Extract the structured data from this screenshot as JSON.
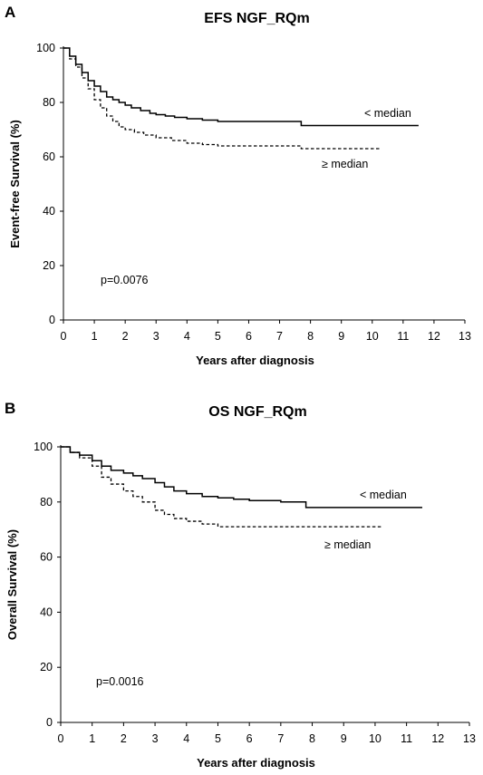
{
  "chart_data": [
    {
      "panel": "A",
      "type": "line",
      "title": "EFS NGF_RQm",
      "xlabel": "Years after diagnosis",
      "ylabel": "Event-free Survival (%)",
      "xlim": [
        0,
        13
      ],
      "ylim": [
        0,
        100
      ],
      "xticks": [
        0,
        1,
        2,
        3,
        4,
        5,
        6,
        7,
        8,
        9,
        10,
        11,
        12,
        13
      ],
      "yticks": [
        0,
        20,
        40,
        60,
        80,
        100
      ],
      "pvalue": "p=0.0076",
      "series": [
        {
          "name": "< median",
          "style": "solid",
          "x": [
            0,
            0.2,
            0.4,
            0.6,
            0.8,
            1.0,
            1.2,
            1.4,
            1.6,
            1.8,
            2.0,
            2.2,
            2.5,
            2.8,
            3.0,
            3.3,
            3.6,
            4.0,
            4.5,
            5.0,
            6.0,
            7.0,
            7.7,
            7.7,
            9.0,
            10.0,
            11.5
          ],
          "y": [
            100,
            97,
            94,
            91,
            88,
            86,
            84,
            82,
            81,
            80,
            79,
            78,
            77,
            76,
            75.5,
            75,
            74.5,
            74,
            73.5,
            73,
            73,
            73,
            72.5,
            71.5,
            71.5,
            71.5,
            71.5
          ]
        },
        {
          "name": "≥ median",
          "style": "dashed",
          "x": [
            0,
            0.2,
            0.4,
            0.6,
            0.8,
            1.0,
            1.2,
            1.4,
            1.6,
            1.8,
            2.0,
            2.3,
            2.6,
            3.0,
            3.5,
            4.0,
            4.5,
            5.0,
            6.0,
            7.0,
            7.6,
            7.7,
            9.0,
            10.3
          ],
          "y": [
            100,
            96,
            93,
            89,
            85,
            81,
            78,
            75,
            73,
            71,
            70,
            69,
            68,
            67,
            66,
            65,
            64.5,
            64,
            64,
            64,
            64,
            63,
            63,
            63
          ]
        }
      ]
    },
    {
      "panel": "B",
      "type": "line",
      "title": "OS NGF_RQm",
      "xlabel": "Years after diagnosis",
      "ylabel": "Overall Survival  (%)",
      "xlim": [
        0,
        13
      ],
      "ylim": [
        0,
        100
      ],
      "xticks": [
        0,
        1,
        2,
        3,
        4,
        5,
        6,
        7,
        8,
        9,
        10,
        11,
        12,
        13
      ],
      "yticks": [
        0,
        20,
        40,
        60,
        80,
        100
      ],
      "pvalue": "p=0.0016",
      "series": [
        {
          "name": "< median",
          "style": "solid",
          "x": [
            0,
            0.3,
            0.6,
            1.0,
            1.3,
            1.6,
            2.0,
            2.3,
            2.6,
            3.0,
            3.3,
            3.6,
            4.0,
            4.5,
            5.0,
            5.5,
            6.0,
            7.0,
            7.7,
            7.8,
            9.0,
            10.0,
            11.5
          ],
          "y": [
            100,
            98,
            97,
            95,
            93,
            91.5,
            90.5,
            89.5,
            88.5,
            87,
            85.5,
            84,
            83,
            82,
            81.5,
            81,
            80.5,
            80,
            80,
            78,
            78,
            78,
            78
          ]
        },
        {
          "name": "≥ median",
          "style": "dashed",
          "x": [
            0,
            0.3,
            0.6,
            1.0,
            1.3,
            1.6,
            2.0,
            2.3,
            2.6,
            3.0,
            3.3,
            3.6,
            4.0,
            4.5,
            5.0,
            6.0,
            7.0,
            8.0,
            9.0,
            10.2
          ],
          "y": [
            100,
            98,
            96,
            93,
            89,
            86.5,
            84,
            82,
            80,
            77,
            75.5,
            74,
            73,
            72,
            71,
            71,
            71,
            71,
            71,
            71
          ]
        }
      ]
    }
  ]
}
